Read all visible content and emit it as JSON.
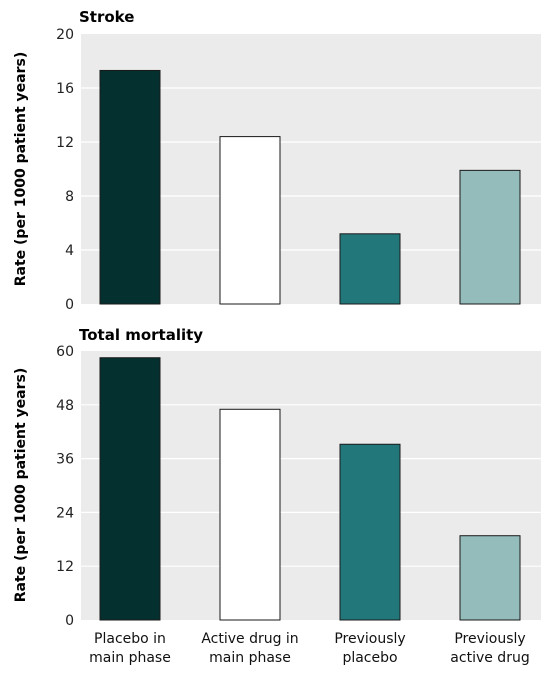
{
  "chart_data": [
    {
      "type": "bar",
      "title": "Stroke",
      "ylabel": "Rate (per 1000 patient years)",
      "ylim": [
        0,
        20
      ],
      "yticks": [
        "0",
        "4",
        "8",
        "12",
        "16",
        "20"
      ],
      "categories": [
        "Placebo in main phase",
        "Active drug in main phase",
        "Previously placebo",
        "Previously active drug"
      ],
      "values": [
        17.3,
        12.4,
        5.2,
        9.9
      ],
      "grid": true
    },
    {
      "type": "bar",
      "title": "Total mortality",
      "ylabel": "Rate (per 1000 patient years)",
      "ylim": [
        0,
        60
      ],
      "yticks": [
        "0",
        "12",
        "24",
        "36",
        "48",
        "60"
      ],
      "categories": [
        "Placebo in main phase",
        "Active drug in main phase",
        "Previously placebo",
        "Previously active drug"
      ],
      "values": [
        58.5,
        47,
        39.2,
        18.8
      ],
      "grid": true
    }
  ],
  "category_lines": [
    [
      "Placebo in",
      "main phase"
    ],
    [
      "Active drug in",
      "main phase"
    ],
    [
      "Previously",
      "placebo"
    ],
    [
      "Previously",
      "active drug"
    ]
  ],
  "colors": {
    "bars": [
      "#04312f",
      "#ffffff",
      "#21777a",
      "#93bcbb"
    ],
    "plot_bg": "#ebebeb",
    "grid": "#ffffff",
    "bar_stroke": "#1a1a1a"
  }
}
